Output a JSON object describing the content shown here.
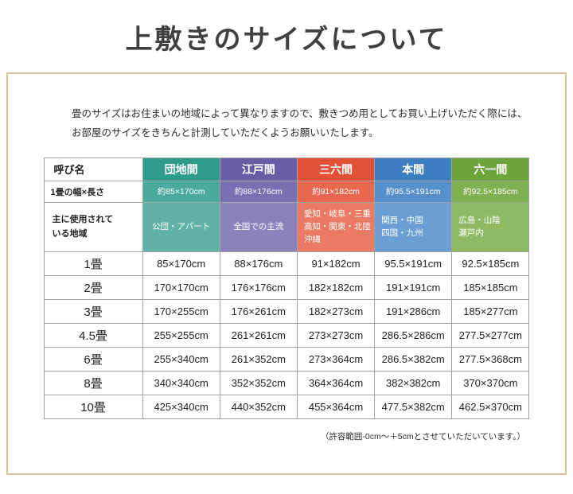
{
  "page": {
    "title": "上敷きのサイズについて",
    "intro": {
      "line1": "畳のサイズはお住まいの地域によって異なりますので、敷きつめ用としてお買い上げいただく際には、",
      "line2": "お部屋のサイズをきちんと計測していただくようお願いいたします。"
    },
    "footnote": "（許容範囲-0cm〜＋5cmとさせていただいています。）"
  },
  "table": {
    "corner_label": "呼び名",
    "size_row_label": "1畳の幅×長さ",
    "region_row_label_line1": "主に使用されて",
    "region_row_label_line2": "いる地域",
    "columns": [
      {
        "name": "団地間",
        "header_color": "#2e9b8b",
        "size_color": "#4aaa9b",
        "region_color": "#5fb2a5",
        "size": "約85×170cm",
        "region_lines": [
          "公団・アパート"
        ]
      },
      {
        "name": "江戸間",
        "header_color": "#685ca4",
        "size_color": "#7a6fb1",
        "region_color": "#8b82bc",
        "size": "約88×176cm",
        "region_lines": [
          "全国での主流"
        ]
      },
      {
        "name": "三六間",
        "header_color": "#e25038",
        "size_color": "#e8684f",
        "region_color": "#eb7a64",
        "size": "約91×182cm",
        "region_lines": [
          "愛知・岐阜・三重",
          "高知・関東・北陸",
          "沖縄"
        ]
      },
      {
        "name": "本間",
        "header_color": "#3c7ec0",
        "size_color": "#5590ca",
        "region_color": "#6b9fd3",
        "size": "約95.5×191cm",
        "region_lines": [
          "関西・中国",
          "四国・九州"
        ]
      },
      {
        "name": "六一間",
        "header_color": "#6ea43c",
        "size_color": "#7fb051",
        "region_color": "#8eba65",
        "size": "約92.5×185cm",
        "region_lines": [
          "広島・山陰",
          "瀬戸内"
        ]
      }
    ],
    "rows": [
      {
        "label": "1畳",
        "values": [
          "85×170cm",
          "88×176cm",
          "91×182cm",
          "95.5×191cm",
          "92.5×185cm"
        ]
      },
      {
        "label": "2畳",
        "values": [
          "170×170cm",
          "176×176cm",
          "182×182cm",
          "191×191cm",
          "185×185cm"
        ]
      },
      {
        "label": "3畳",
        "values": [
          "170×255cm",
          "176×261cm",
          "182×273cm",
          "191×286cm",
          "185×277cm"
        ]
      },
      {
        "label": "4.5畳",
        "values": [
          "255×255cm",
          "261×261cm",
          "273×273cm",
          "286.5×286cm",
          "277.5×277cm"
        ]
      },
      {
        "label": "6畳",
        "values": [
          "255×340cm",
          "261×352cm",
          "273×364cm",
          "286.5×382cm",
          "277.5×368cm"
        ]
      },
      {
        "label": "8畳",
        "values": [
          "340×340cm",
          "352×352cm",
          "364×364cm",
          "382×382cm",
          "370×370cm"
        ]
      },
      {
        "label": "10畳",
        "values": [
          "425×340cm",
          "440×352cm",
          "455×364cm",
          "477.5×382cm",
          "462.5×370cm"
        ]
      }
    ]
  }
}
